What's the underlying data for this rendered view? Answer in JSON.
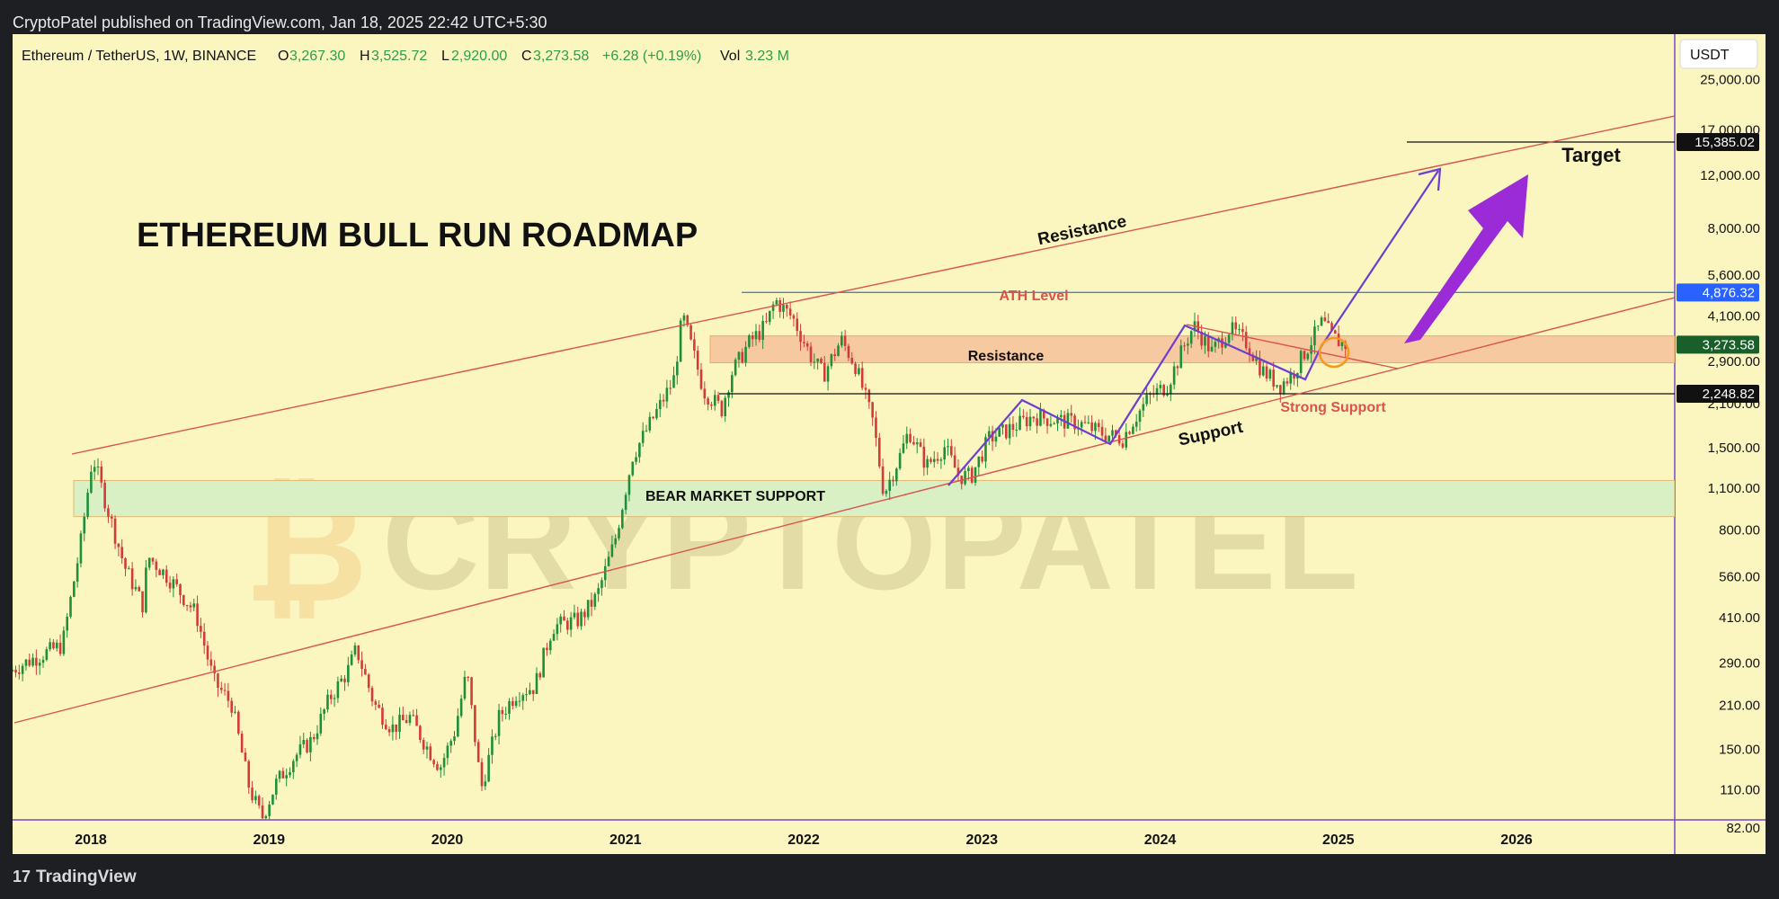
{
  "header": {
    "published": "CryptoPatel published on TradingView.com, Jan 18, 2025 22:42 UTC+5:30"
  },
  "footer": {
    "brand_mark": "17",
    "brand": "TradingView"
  },
  "legend": {
    "symbol": "Ethereum / TetherUS, 1W, BINANCE",
    "o_label": "O",
    "o": "3,267.30",
    "h_label": "H",
    "h": "3,525.72",
    "l_label": "L",
    "l": "2,920.00",
    "c_label": "C",
    "c": "3,273.58",
    "change": "+6.28 (+0.19%)",
    "vol_label": "Vol",
    "vol": "3.23 M"
  },
  "currency": "USDT",
  "colors": {
    "background": "#fbf6c0",
    "up": "#1f8f3a",
    "down": "#d23b3b",
    "channel": "#d9534f",
    "ath": "#4a7fd6",
    "purple": "#8a2bd6",
    "resistance_zone": "#f7c9a0",
    "support_zone": "#d8f0c4"
  },
  "chart_data": {
    "type": "candlestick",
    "title": "ETHEREUM BULL RUN ROADMAP",
    "y_scale": "log",
    "ylim": [
      65,
      36000
    ],
    "xlim": [
      2017.55,
      2026.9
    ],
    "y_ticks": [
      82,
      110,
      150,
      210,
      290,
      410,
      560,
      800,
      1100,
      1500,
      2100,
      2900,
      4100,
      5600,
      8000,
      12000,
      17000,
      25000
    ],
    "y_tick_labels": [
      "82.00",
      "110.00",
      "150.00",
      "210.00",
      "290.00",
      "410.00",
      "560.00",
      "800.00",
      "1,100.00",
      "1,500.00",
      "2,100.00",
      "2,900.00",
      "4,100.00",
      "5,600.00",
      "8,000.00",
      "12,000.00",
      "17,000.00",
      "25,000.00"
    ],
    "x_ticks": [
      2018,
      2019,
      2020,
      2021,
      2022,
      2023,
      2024,
      2025,
      2026
    ],
    "x_tick_labels": [
      "2018",
      "2019",
      "2020",
      "2021",
      "2022",
      "2023",
      "2024",
      "2025",
      "2026"
    ],
    "price_path": [
      [
        2017.55,
        270
      ],
      [
        2017.7,
        300
      ],
      [
        2017.85,
        330
      ],
      [
        2017.95,
        700
      ],
      [
        2018.02,
        1400
      ],
      [
        2018.1,
        950
      ],
      [
        2018.2,
        600
      ],
      [
        2018.3,
        450
      ],
      [
        2018.33,
        650
      ],
      [
        2018.45,
        550
      ],
      [
        2018.6,
        420
      ],
      [
        2018.7,
        250
      ],
      [
        2018.8,
        210
      ],
      [
        2018.9,
        110
      ],
      [
        2018.97,
        88
      ],
      [
        2019.05,
        115
      ],
      [
        2019.15,
        140
      ],
      [
        2019.25,
        160
      ],
      [
        2019.35,
        220
      ],
      [
        2019.45,
        270
      ],
      [
        2019.5,
        320
      ],
      [
        2019.6,
        210
      ],
      [
        2019.7,
        175
      ],
      [
        2019.8,
        190
      ],
      [
        2019.9,
        150
      ],
      [
        2019.97,
        130
      ],
      [
        2020.05,
        170
      ],
      [
        2020.12,
        270
      ],
      [
        2020.2,
        110
      ],
      [
        2020.3,
        190
      ],
      [
        2020.4,
        230
      ],
      [
        2020.5,
        240
      ],
      [
        2020.6,
        380
      ],
      [
        2020.75,
        400
      ],
      [
        2020.85,
        480
      ],
      [
        2020.95,
        730
      ],
      [
        2021.05,
        1400
      ],
      [
        2021.15,
        1800
      ],
      [
        2021.28,
        2500
      ],
      [
        2021.33,
        4100
      ],
      [
        2021.45,
        2300
      ],
      [
        2021.55,
        2000
      ],
      [
        2021.6,
        2600
      ],
      [
        2021.7,
        3300
      ],
      [
        2021.8,
        3800
      ],
      [
        2021.85,
        4600
      ],
      [
        2021.95,
        4000
      ],
      [
        2022.05,
        3000
      ],
      [
        2022.12,
        2600
      ],
      [
        2022.22,
        3400
      ],
      [
        2022.3,
        2800
      ],
      [
        2022.4,
        1800
      ],
      [
        2022.46,
        1050
      ],
      [
        2022.55,
        1400
      ],
      [
        2022.6,
        1700
      ],
      [
        2022.7,
        1300
      ],
      [
        2022.8,
        1500
      ],
      [
        2022.88,
        1200
      ],
      [
        2022.95,
        1200
      ],
      [
        2023.05,
        1600
      ],
      [
        2023.15,
        1700
      ],
      [
        2023.3,
        1900
      ],
      [
        2023.4,
        1850
      ],
      [
        2023.55,
        1800
      ],
      [
        2023.7,
        1650
      ],
      [
        2023.8,
        1600
      ],
      [
        2023.85,
        1800
      ],
      [
        2023.95,
        2200
      ],
      [
        2024.05,
        2400
      ],
      [
        2024.15,
        3300
      ],
      [
        2024.2,
        3800
      ],
      [
        2024.3,
        3100
      ],
      [
        2024.4,
        3700
      ],
      [
        2024.5,
        3300
      ],
      [
        2024.58,
        2700
      ],
      [
        2024.68,
        2400
      ],
      [
        2024.75,
        2600
      ],
      [
        2024.85,
        3300
      ],
      [
        2024.92,
        3900
      ],
      [
        2024.97,
        3500
      ],
      [
        2025.04,
        3273.58
      ]
    ],
    "levels": [
      {
        "label": "",
        "value": 15385.02,
        "price_label": "15,385.02"
      },
      {
        "label": "ATH Level",
        "value": 4876.32,
        "price_label": "4,876.32"
      },
      {
        "label": "",
        "value": 3273.58,
        "price_label": "3,273.58"
      },
      {
        "label": "",
        "value": 2248.82,
        "price_label": "2,248.82"
      }
    ],
    "zones": [
      {
        "label": "Resistance",
        "low": 2850,
        "high": 3500
      },
      {
        "label": "BEAR MARKET SUPPORT",
        "low": 880,
        "high": 1160
      }
    ],
    "annotations": {
      "resistance_line": "Resistance",
      "support_line": "Support",
      "strong_support": "Strong Support",
      "target": "Target",
      "watermark": "CRYPTOPATEL"
    }
  }
}
